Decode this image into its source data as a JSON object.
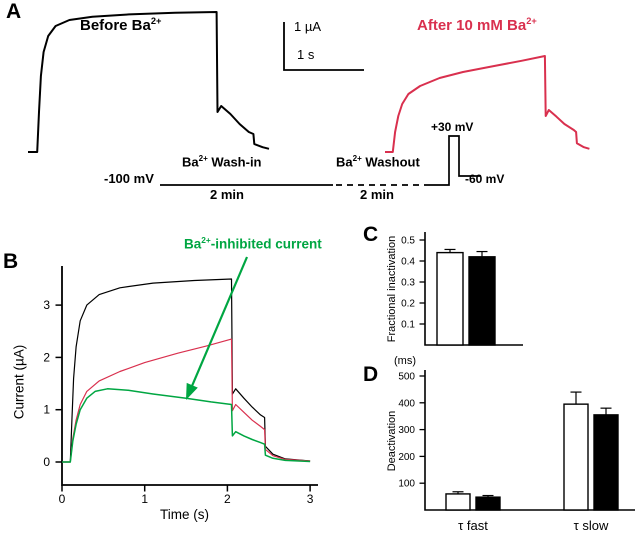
{
  "panel_labels": {
    "a": "A",
    "b": "B",
    "c": "C",
    "d": "D"
  },
  "colors": {
    "black": "#000000",
    "red": "#d9304e",
    "green": "#00a642"
  },
  "chart_data": [
    {
      "id": "panelA_traces",
      "panel": "A",
      "type": "line",
      "scale_bars": {
        "vertical": "1 µA",
        "horizontal": "1 s"
      },
      "labels": {
        "before": {
          "pre": "Before Ba",
          "sup": "2+",
          "post": ""
        },
        "after": {
          "pre": "After 10 mM Ba",
          "sup": "2+",
          "post": ""
        }
      },
      "protocol": {
        "holding": "-100 mV",
        "washin": {
          "pre": "Ba",
          "sup": "2+",
          "post": " Wash-in"
        },
        "washin_time": "2 min",
        "washout": {
          "pre": "Ba",
          "sup": "2+",
          "post": " Washout"
        },
        "washout_time": "2 min",
        "step": "+30 mV",
        "tail": "-60 mV"
      },
      "series": [
        {
          "name": "Before Ba2+",
          "color": "#000000",
          "units": [
            "s",
            "µA"
          ],
          "points": [
            [
              0,
              0
            ],
            [
              0.1,
              0
            ],
            [
              0.12,
              1.0
            ],
            [
              0.14,
              1.9
            ],
            [
              0.17,
              2.5
            ],
            [
              0.22,
              2.9
            ],
            [
              0.3,
              3.15
            ],
            [
              0.45,
              3.3
            ],
            [
              0.7,
              3.38
            ],
            [
              1.1,
              3.44
            ],
            [
              1.6,
              3.48
            ],
            [
              2.05,
              3.5
            ],
            [
              2.06,
              1.0
            ],
            [
              2.1,
              1.15
            ],
            [
              2.2,
              0.95
            ],
            [
              2.3,
              0.7
            ],
            [
              2.4,
              0.5
            ],
            [
              2.45,
              0.45
            ],
            [
              2.46,
              0.2
            ],
            [
              2.55,
              0.12
            ],
            [
              2.62,
              0.08
            ]
          ]
        },
        {
          "name": "After 10 mM Ba2+",
          "color": "#d9304e",
          "units": [
            "s",
            "µA"
          ],
          "points": [
            [
              0,
              0
            ],
            [
              0.1,
              0
            ],
            [
              0.13,
              0.5
            ],
            [
              0.17,
              0.9
            ],
            [
              0.22,
              1.2
            ],
            [
              0.3,
              1.45
            ],
            [
              0.45,
              1.65
            ],
            [
              0.7,
              1.85
            ],
            [
              1.0,
              2.0
            ],
            [
              1.4,
              2.15
            ],
            [
              1.75,
              2.28
            ],
            [
              2.05,
              2.4
            ],
            [
              2.06,
              0.9
            ],
            [
              2.1,
              1.05
            ],
            [
              2.2,
              0.88
            ],
            [
              2.3,
              0.7
            ],
            [
              2.42,
              0.55
            ],
            [
              2.45,
              0.5
            ],
            [
              2.46,
              0.22
            ],
            [
              2.55,
              0.12
            ],
            [
              2.62,
              0.08
            ]
          ]
        }
      ]
    },
    {
      "id": "panelB_traces",
      "panel": "B",
      "type": "line",
      "xlabel": "Time (s)",
      "ylabel": "Current (µA)",
      "xlim": [
        0,
        3
      ],
      "xticks": [
        0,
        1,
        2,
        3
      ],
      "ylim": [
        0,
        3.7
      ],
      "yticks": [
        0,
        1,
        2,
        3
      ],
      "annotation": {
        "pre": "Ba",
        "sup": "2+",
        "post": "-inhibited current"
      },
      "series": [
        {
          "name": "Before Ba2+",
          "color": "#000000",
          "points": [
            [
              0,
              0
            ],
            [
              0.1,
              0
            ],
            [
              0.12,
              0.8
            ],
            [
              0.14,
              1.6
            ],
            [
              0.17,
              2.2
            ],
            [
              0.22,
              2.7
            ],
            [
              0.3,
              3.0
            ],
            [
              0.45,
              3.2
            ],
            [
              0.7,
              3.33
            ],
            [
              1.1,
              3.42
            ],
            [
              1.6,
              3.47
            ],
            [
              2.05,
              3.5
            ],
            [
              2.06,
              1.3
            ],
            [
              2.1,
              1.4
            ],
            [
              2.2,
              1.22
            ],
            [
              2.3,
              1.05
            ],
            [
              2.4,
              0.9
            ],
            [
              2.45,
              0.85
            ],
            [
              2.46,
              0.3
            ],
            [
              2.55,
              0.15
            ],
            [
              2.7,
              0.06
            ],
            [
              3.0,
              0.02
            ]
          ]
        },
        {
          "name": "After Ba2+",
          "color": "#d9304e",
          "points": [
            [
              0,
              0
            ],
            [
              0.1,
              0
            ],
            [
              0.13,
              0.45
            ],
            [
              0.17,
              0.8
            ],
            [
              0.22,
              1.1
            ],
            [
              0.3,
              1.35
            ],
            [
              0.45,
              1.55
            ],
            [
              0.7,
              1.73
            ],
            [
              1.0,
              1.9
            ],
            [
              1.4,
              2.08
            ],
            [
              1.75,
              2.22
            ],
            [
              2.05,
              2.35
            ],
            [
              2.06,
              0.98
            ],
            [
              2.1,
              1.1
            ],
            [
              2.2,
              0.95
            ],
            [
              2.3,
              0.8
            ],
            [
              2.4,
              0.68
            ],
            [
              2.45,
              0.62
            ],
            [
              2.46,
              0.24
            ],
            [
              2.55,
              0.12
            ],
            [
              2.7,
              0.05
            ],
            [
              3.0,
              0.02
            ]
          ]
        },
        {
          "name": "Ba2+-inhibited current",
          "color": "#00a642",
          "points": [
            [
              0,
              0
            ],
            [
              0.1,
              0
            ],
            [
              0.13,
              0.4
            ],
            [
              0.17,
              0.72
            ],
            [
              0.22,
              1.0
            ],
            [
              0.3,
              1.22
            ],
            [
              0.4,
              1.35
            ],
            [
              0.55,
              1.4
            ],
            [
              0.8,
              1.37
            ],
            [
              1.1,
              1.3
            ],
            [
              1.5,
              1.22
            ],
            [
              1.8,
              1.15
            ],
            [
              2.05,
              1.1
            ],
            [
              2.06,
              0.5
            ],
            [
              2.1,
              0.58
            ],
            [
              2.2,
              0.5
            ],
            [
              2.3,
              0.43
            ],
            [
              2.4,
              0.37
            ],
            [
              2.45,
              0.34
            ],
            [
              2.46,
              0.13
            ],
            [
              2.55,
              0.07
            ],
            [
              2.7,
              0.03
            ],
            [
              3.0,
              0.01
            ]
          ]
        }
      ]
    },
    {
      "id": "panelC_bars",
      "panel": "C",
      "type": "bar",
      "ylabel": "Fractional  inactivation",
      "ylim": [
        0,
        0.5
      ],
      "yticks": [
        0.1,
        0.2,
        0.3,
        0.4,
        0.5
      ],
      "bars": [
        {
          "fill": "#ffffff",
          "value": 0.44,
          "error": 0.015
        },
        {
          "fill": "#000000",
          "value": 0.42,
          "error": 0.025
        }
      ]
    },
    {
      "id": "panelD_bars",
      "panel": "D",
      "type": "bar",
      "ylabel": "Deactivation",
      "unit_label": "(ms)",
      "ylim": [
        0,
        500
      ],
      "yticks": [
        100,
        200,
        300,
        400,
        500
      ],
      "groups": [
        {
          "label": "τ fast",
          "bars": [
            {
              "fill": "#ffffff",
              "value": 60,
              "error": 8
            },
            {
              "fill": "#000000",
              "value": 48,
              "error": 6
            }
          ]
        },
        {
          "label": "τ slow",
          "bars": [
            {
              "fill": "#ffffff",
              "value": 395,
              "error": 45
            },
            {
              "fill": "#000000",
              "value": 355,
              "error": 25
            }
          ]
        }
      ]
    }
  ]
}
